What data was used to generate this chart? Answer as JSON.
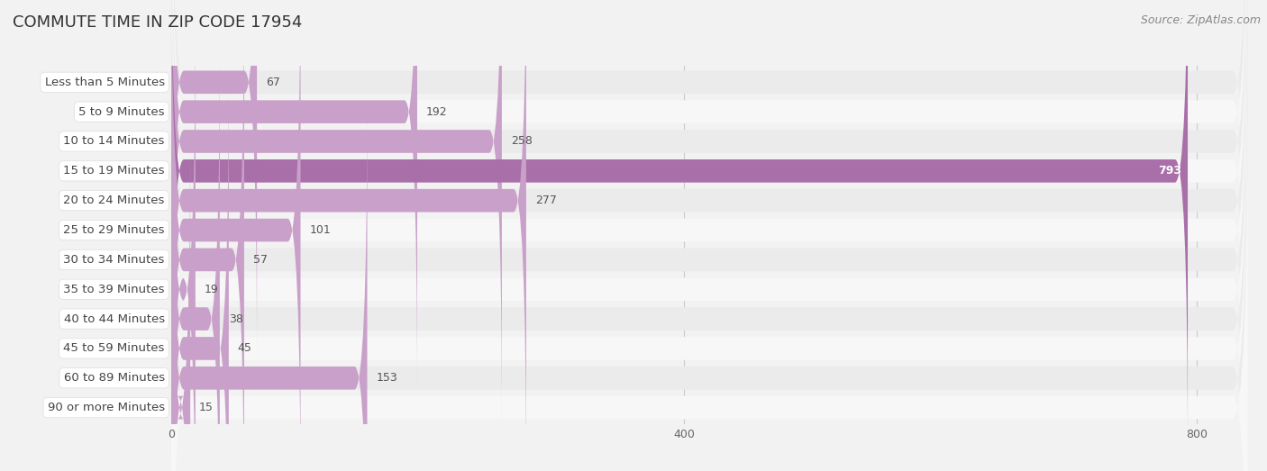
{
  "title": "COMMUTE TIME IN ZIP CODE 17954",
  "source": "Source: ZipAtlas.com",
  "categories": [
    "Less than 5 Minutes",
    "5 to 9 Minutes",
    "10 to 14 Minutes",
    "15 to 19 Minutes",
    "20 to 24 Minutes",
    "25 to 29 Minutes",
    "30 to 34 Minutes",
    "35 to 39 Minutes",
    "40 to 44 Minutes",
    "45 to 59 Minutes",
    "60 to 89 Minutes",
    "90 or more Minutes"
  ],
  "values": [
    67,
    192,
    258,
    793,
    277,
    101,
    57,
    19,
    38,
    45,
    153,
    15
  ],
  "bar_color": "#c9a0c9",
  "highlight_index": 3,
  "highlight_color": "#a96fa9",
  "xlim_data": [
    0,
    840
  ],
  "xticks": [
    0,
    400,
    800
  ],
  "title_fontsize": 13,
  "label_fontsize": 9.5,
  "value_fontsize": 9,
  "source_fontsize": 9,
  "bg_color": "#f2f2f2",
  "row_bg_even": "#ebebeb",
  "row_bg_odd": "#f7f7f7",
  "label_pill_color": "#ffffff",
  "label_text_color": "#444444",
  "value_text_color": "#555555",
  "value_text_color_highlight": "#ffffff",
  "grid_color": "#cccccc"
}
